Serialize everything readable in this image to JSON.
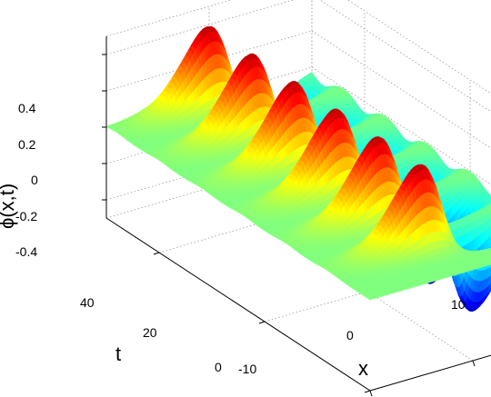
{
  "chart_data": {
    "type": "surface",
    "zlabel": "ϕ(x,t)",
    "xlabel": "x",
    "ylabel": "t",
    "x_ticks": [
      "-10",
      "0",
      "10"
    ],
    "t_ticks": [
      "0",
      "20",
      "40"
    ],
    "z_ticks": [
      "-0.4",
      "-0.2",
      "0",
      "0.2",
      "0.4"
    ],
    "xlim": [
      -10,
      10
    ],
    "tlim": [
      0,
      50
    ],
    "zlim": [
      -0.5,
      0.5
    ],
    "grid": true,
    "colormap": "jet",
    "surface_description_values": {
      "breather_count": 6,
      "peak_amplitude": 0.5,
      "trough_amplitude": -0.5,
      "breather_t_positions": [
        48,
        40,
        32,
        24,
        16,
        8
      ]
    }
  }
}
